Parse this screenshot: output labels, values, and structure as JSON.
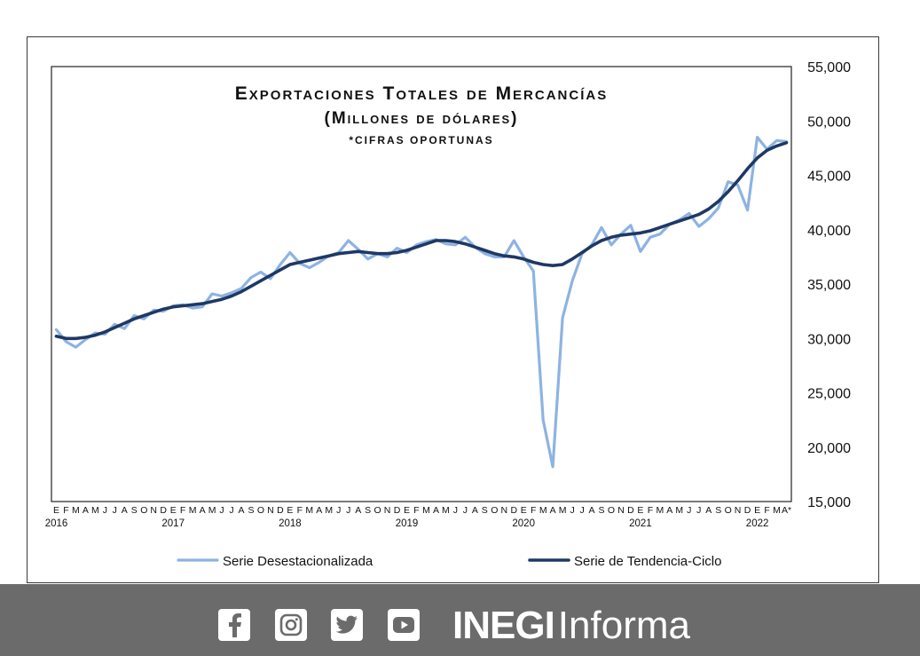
{
  "chart_data": {
    "type": "line",
    "title": "Exportaciones Totales de Mercancías",
    "subtitle": "(Millones de dólares)",
    "note": "*cifras oportunas",
    "ylim": [
      15000,
      55000
    ],
    "y_ticks": [
      "55,000",
      "50,000",
      "45,000",
      "40,000",
      "35,000",
      "30,000",
      "25,000",
      "20,000",
      "15,000"
    ],
    "y_tick_values": [
      55000,
      50000,
      45000,
      40000,
      35000,
      30000,
      25000,
      20000,
      15000
    ],
    "y_axis_side": "right",
    "grid": false,
    "legend_position": "bottom",
    "month_labels": [
      "E",
      "F",
      "M",
      "A",
      "M",
      "J",
      "J",
      "A",
      "S",
      "O",
      "N",
      "D",
      "E",
      "F",
      "M",
      "A",
      "M",
      "J",
      "J",
      "A",
      "S",
      "O",
      "N",
      "D",
      "E",
      "F",
      "M",
      "A",
      "M",
      "J",
      "J",
      "A",
      "S",
      "O",
      "N",
      "D",
      "E",
      "F",
      "M",
      "A",
      "M",
      "J",
      "J",
      "A",
      "S",
      "O",
      "N",
      "D",
      "E",
      "F",
      "M",
      "A",
      "M",
      "J",
      "J",
      "A",
      "S",
      "O",
      "N",
      "D",
      "E",
      "F",
      "M",
      "A",
      "M",
      "J",
      "J",
      "A",
      "S",
      "O",
      "N",
      "D",
      "E",
      "F",
      "M",
      "A*"
    ],
    "year_labels": [
      {
        "label": "2016",
        "index": 0
      },
      {
        "label": "2017",
        "index": 12
      },
      {
        "label": "2018",
        "index": 24
      },
      {
        "label": "2019",
        "index": 36
      },
      {
        "label": "2020",
        "index": 48
      },
      {
        "label": "2021",
        "index": 60
      },
      {
        "label": "2022",
        "index": 72
      }
    ],
    "series": [
      {
        "name": "Serie Desestacionalizada",
        "color": "#8db3e2",
        "values": [
          30800,
          29700,
          29200,
          29900,
          30500,
          30400,
          31300,
          30900,
          32100,
          31800,
          32600,
          32500,
          33000,
          33100,
          32800,
          32900,
          34100,
          33900,
          34200,
          34600,
          35600,
          36100,
          35500,
          36800,
          37900,
          36900,
          36500,
          37000,
          37600,
          37900,
          39000,
          38200,
          37300,
          37800,
          37500,
          38300,
          37900,
          38600,
          38900,
          39100,
          38700,
          38600,
          39300,
          38400,
          37800,
          37500,
          37500,
          39000,
          37500,
          36200,
          22500,
          18200,
          31900,
          35300,
          37800,
          38600,
          40200,
          38600,
          39600,
          40400,
          38000,
          39300,
          39600,
          40500,
          40900,
          41500,
          40300,
          41000,
          42000,
          44400,
          44100,
          41800,
          48500,
          47400,
          48200,
          48100
        ]
      },
      {
        "name": "Serie de Tendencia-Ciclo",
        "color": "#1f3864",
        "values": [
          30200,
          30000,
          30000,
          30100,
          30300,
          30600,
          31000,
          31400,
          31800,
          32100,
          32400,
          32700,
          32900,
          33000,
          33100,
          33200,
          33400,
          33600,
          33900,
          34300,
          34800,
          35300,
          35800,
          36300,
          36800,
          37000,
          37200,
          37400,
          37600,
          37800,
          37900,
          38000,
          37900,
          37800,
          37800,
          37900,
          38100,
          38400,
          38700,
          39000,
          39000,
          38900,
          38700,
          38400,
          38100,
          37800,
          37600,
          37500,
          37300,
          37000,
          36800,
          36700,
          36800,
          37300,
          37900,
          38500,
          39000,
          39300,
          39500,
          39600,
          39700,
          39900,
          40200,
          40500,
          40800,
          41100,
          41400,
          41900,
          42600,
          43500,
          44500,
          45600,
          46600,
          47300,
          47700,
          48000
        ]
      }
    ]
  },
  "footer": {
    "brand_bold": "INEGI",
    "brand_light": "Informa",
    "social_icons": [
      "facebook-icon",
      "instagram-icon",
      "twitter-icon",
      "youtube-icon"
    ]
  }
}
